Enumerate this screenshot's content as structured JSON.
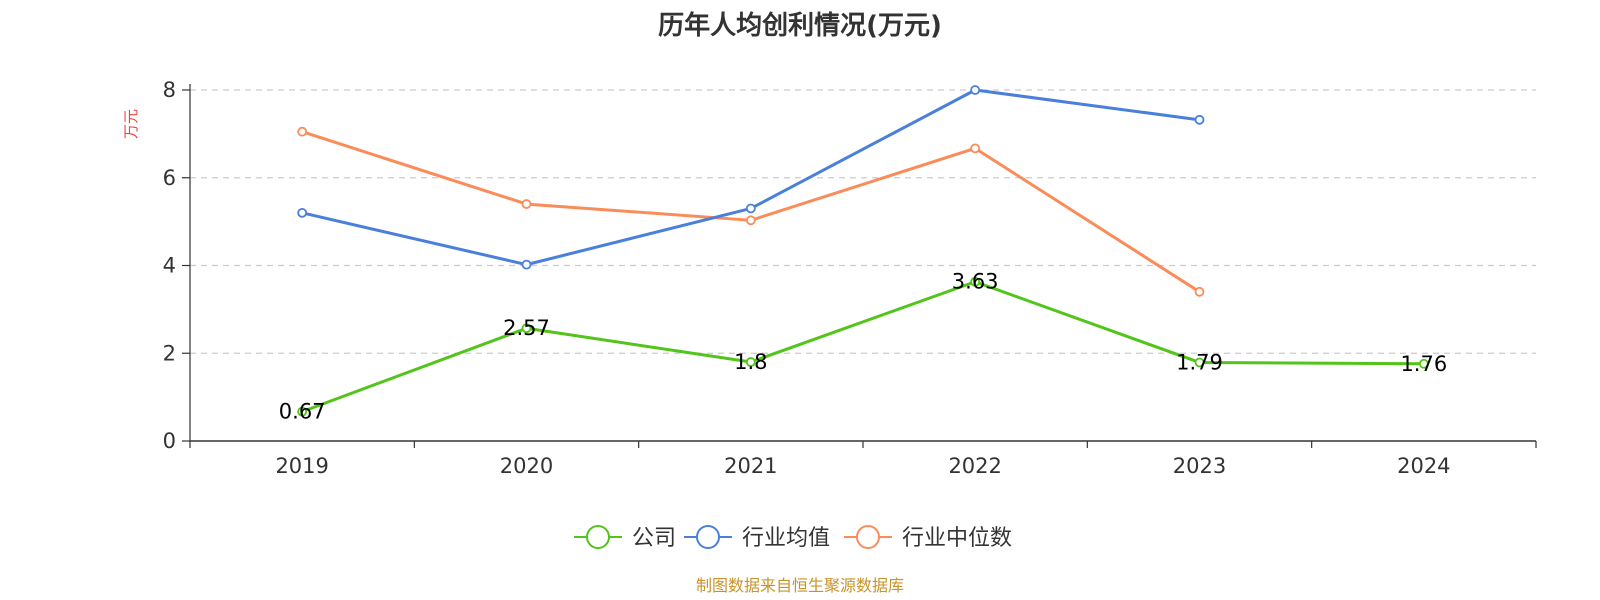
{
  "chart_data": {
    "type": "line",
    "title": "历年人均创利情况(万元)",
    "ylabel": "万元",
    "categories": [
      "2019",
      "2020",
      "2021",
      "2022",
      "2023",
      "2024"
    ],
    "ylim": [
      0,
      8
    ],
    "yticks": [
      0,
      2,
      4,
      6,
      8
    ],
    "grid": true,
    "legend_position": "bottom-center",
    "series": [
      {
        "name": "公司",
        "color": "#52c41a",
        "values": [
          0.67,
          2.57,
          1.8,
          3.63,
          1.79,
          1.76
        ],
        "labels": [
          "0.67",
          "2.57",
          "1.8",
          "3.63",
          "1.79",
          "1.76"
        ]
      },
      {
        "name": "行业均值",
        "color": "#4a7fdc",
        "values": [
          5.2,
          4.02,
          5.3,
          8.0,
          7.32,
          null
        ]
      },
      {
        "name": "行业中位数",
        "color": "#fa8c5a",
        "values": [
          7.05,
          5.4,
          5.03,
          6.67,
          3.4,
          null
        ]
      }
    ]
  },
  "source": "制图数据来自恒生聚源数据库"
}
